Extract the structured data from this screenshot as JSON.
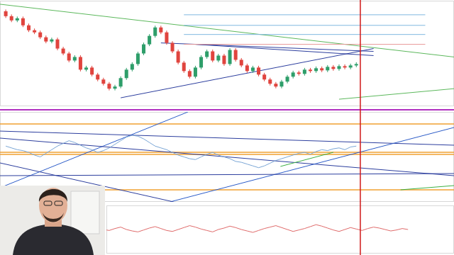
{
  "chart_data": [
    {
      "type": "candlestick",
      "x": [
        0,
        1,
        2,
        3,
        4,
        5,
        6,
        7,
        8,
        9,
        10,
        11,
        12,
        13,
        14,
        15,
        16,
        17,
        18,
        19,
        20,
        21,
        22,
        23,
        24,
        25,
        26,
        27,
        28,
        29,
        30,
        31,
        32,
        33,
        34,
        35,
        36,
        37,
        38,
        39,
        40,
        41,
        42,
        43,
        44,
        45,
        46,
        47,
        48,
        49,
        50,
        51,
        52,
        53,
        54,
        55,
        56,
        57,
        58,
        59,
        60,
        61
      ],
      "open": [
        2840,
        2812,
        2788,
        2800,
        2760,
        2732,
        2720,
        2692,
        2668,
        2680,
        2628,
        2600,
        2560,
        2580,
        2508,
        2520,
        2480,
        2452,
        2428,
        2400,
        2412,
        2460,
        2508,
        2540,
        2600,
        2652,
        2700,
        2748,
        2720,
        2660,
        2612,
        2548,
        2500,
        2468,
        2520,
        2580,
        2612,
        2560,
        2588,
        2540,
        2620,
        2564,
        2532,
        2500,
        2520,
        2480,
        2452,
        2428,
        2412,
        2440,
        2468,
        2492,
        2484,
        2508,
        2500,
        2516,
        2504,
        2524,
        2512,
        2528,
        2520,
        2532
      ],
      "high": [
        2850,
        2822,
        2810,
        2810,
        2770,
        2742,
        2730,
        2702,
        2690,
        2690,
        2638,
        2610,
        2590,
        2590,
        2530,
        2530,
        2490,
        2462,
        2438,
        2422,
        2470,
        2518,
        2550,
        2610,
        2662,
        2710,
        2758,
        2758,
        2730,
        2670,
        2622,
        2558,
        2510,
        2530,
        2590,
        2622,
        2622,
        2598,
        2598,
        2630,
        2630,
        2574,
        2542,
        2530,
        2530,
        2490,
        2462,
        2438,
        2450,
        2478,
        2502,
        2502,
        2518,
        2518,
        2526,
        2526,
        2534,
        2534,
        2538,
        2538,
        2542,
        2550
      ],
      "low": [
        2802,
        2778,
        2778,
        2750,
        2722,
        2710,
        2682,
        2658,
        2658,
        2618,
        2590,
        2550,
        2550,
        2498,
        2498,
        2470,
        2442,
        2418,
        2390,
        2390,
        2402,
        2450,
        2498,
        2530,
        2590,
        2642,
        2690,
        2710,
        2650,
        2602,
        2538,
        2490,
        2458,
        2458,
        2510,
        2570,
        2550,
        2550,
        2530,
        2530,
        2554,
        2522,
        2490,
        2490,
        2470,
        2442,
        2418,
        2402,
        2402,
        2430,
        2458,
        2474,
        2474,
        2490,
        2490,
        2494,
        2494,
        2502,
        2502,
        2510,
        2510,
        2522
      ],
      "close": [
        2812,
        2788,
        2800,
        2760,
        2732,
        2720,
        2692,
        2668,
        2680,
        2628,
        2600,
        2560,
        2580,
        2508,
        2520,
        2480,
        2452,
        2428,
        2400,
        2412,
        2460,
        2508,
        2540,
        2600,
        2652,
        2700,
        2748,
        2720,
        2660,
        2612,
        2548,
        2500,
        2468,
        2520,
        2580,
        2612,
        2560,
        2588,
        2540,
        2620,
        2564,
        2532,
        2500,
        2520,
        2480,
        2452,
        2428,
        2412,
        2440,
        2468,
        2492,
        2484,
        2508,
        2500,
        2516,
        2504,
        2524,
        2512,
        2528,
        2520,
        2532,
        2540
      ],
      "xlim": [
        -1,
        78
      ],
      "ylim": [
        2300,
        2900
      ],
      "trendlines": [
        {
          "x": [
            -1,
            78
          ],
          "y": [
            2880,
            2580
          ],
          "color": "#5cb85c"
        },
        {
          "x": [
            20,
            64
          ],
          "y": [
            2348,
            2628
          ],
          "color": "#2c3e9e"
        },
        {
          "x": [
            33,
            64
          ],
          "y": [
            2652,
            2588
          ],
          "color": "#2c3e9e"
        },
        {
          "x": [
            27,
            64
          ],
          "y": [
            2660,
            2612
          ],
          "color": "#2c3e9e"
        },
        {
          "x": [
            58,
            78
          ],
          "y": [
            2340,
            2400
          ],
          "color": "#5cb85c"
        },
        {
          "x": [
            31,
            73
          ],
          "y": [
            2820,
            2820
          ],
          "color": "#7fb8e0"
        },
        {
          "x": [
            31,
            73
          ],
          "y": [
            2760,
            2760
          ],
          "color": "#7fb8e0"
        },
        {
          "x": [
            31,
            73
          ],
          "y": [
            2708,
            2708
          ],
          "color": "#7fb8e0"
        },
        {
          "x": [
            31,
            73
          ],
          "y": [
            2652,
            2652
          ],
          "color": "#e89a9a"
        }
      ],
      "cursor_x": 61.7,
      "grid": false,
      "tick_labels": false
    },
    {
      "type": "line",
      "x": [
        0,
        1,
        2,
        3,
        4,
        5,
        6,
        7,
        8,
        9,
        10,
        11,
        12,
        13,
        14,
        15,
        16,
        17,
        18,
        19,
        20,
        21,
        22,
        23,
        24,
        25,
        26,
        27,
        28,
        29,
        30,
        31,
        32,
        33,
        34,
        35,
        36,
        37,
        38,
        39,
        40,
        41,
        42,
        43,
        44,
        45,
        46,
        47,
        48,
        49,
        50,
        51,
        52,
        53,
        54,
        55,
        56,
        57,
        58,
        59,
        60,
        61
      ],
      "series": [
        {
          "color": "#7aa6d6",
          "values": [
            62,
            60,
            58,
            57,
            55,
            52,
            50,
            54,
            58,
            62,
            65,
            68,
            66,
            63,
            60,
            58,
            55,
            57,
            60,
            64,
            68,
            72,
            74,
            73,
            70,
            66,
            62,
            60,
            58,
            55,
            52,
            50,
            48,
            47,
            50,
            53,
            55,
            52,
            50,
            48,
            45,
            44,
            42,
            40,
            38,
            40,
            43,
            46,
            48,
            50,
            52,
            54,
            55,
            53,
            56,
            58,
            57,
            59,
            60,
            58,
            61,
            62
          ]
        }
      ],
      "xlim": [
        -1,
        78
      ],
      "ylim": [
        0,
        100
      ],
      "levels": [
        {
          "value": 86.6,
          "color": "#f0a030"
        },
        {
          "value": 55.1,
          "color": "#f0a030"
        },
        {
          "value": 52.8,
          "color": "#f0a030"
        },
        {
          "value": 13.4,
          "color": "#f0a030"
        }
      ],
      "trendlines": [
        {
          "x": [
            -1,
            31.7
          ],
          "y": [
            15.7,
            100
          ],
          "color": "#2c5cc8"
        },
        {
          "x": [
            -1,
            78
          ],
          "y": [
            78.7,
            63
          ],
          "color": "#2c3e9e"
        },
        {
          "x": [
            -1,
            78
          ],
          "y": [
            70.9,
            29.1
          ],
          "color": "#2c3e9e"
        },
        {
          "x": [
            28.6,
            78
          ],
          "y": [
            0,
            82.7
          ],
          "color": "#2c5cc8"
        },
        {
          "x": [
            -1,
            29.2
          ],
          "y": [
            43.3,
            0
          ],
          "color": "#2c3e9e"
        },
        {
          "x": [
            -1,
            78
          ],
          "y": [
            29.1,
            31.5
          ],
          "color": "#2c3e9e"
        },
        {
          "x": [
            47.8,
            57
          ],
          "y": [
            39.4,
            55.1
          ],
          "color": "#3cb043"
        },
        {
          "x": [
            68.7,
            78
          ],
          "y": [
            13.4,
            18.1
          ],
          "color": "#3cb043"
        }
      ],
      "grid": false,
      "tick_labels": false
    },
    {
      "type": "line",
      "x": [
        17,
        18,
        19,
        20,
        21,
        22,
        23,
        24,
        25,
        26,
        27,
        28,
        29,
        30,
        31,
        32,
        33,
        34,
        35,
        36,
        37,
        38,
        39,
        40,
        41,
        42,
        43,
        44,
        45,
        46,
        47,
        48,
        49,
        50,
        51,
        52,
        53,
        54,
        55,
        56,
        57,
        58,
        59,
        60,
        61,
        62,
        63,
        64,
        65,
        66,
        67,
        68,
        69,
        70
      ],
      "series": [
        {
          "color": "#e06a6a",
          "values": [
            50,
            48,
            52,
            55,
            50,
            47,
            45,
            49,
            53,
            56,
            52,
            48,
            46,
            50,
            54,
            58,
            55,
            51,
            48,
            45,
            50,
            53,
            57,
            54,
            50,
            47,
            44,
            48,
            52,
            55,
            58,
            54,
            50,
            46,
            49,
            52,
            56,
            60,
            57,
            53,
            49,
            46,
            50,
            54,
            51,
            48,
            52,
            55,
            53,
            50,
            47,
            49,
            52,
            50
          ]
        }
      ],
      "xlim": [
        -1,
        78
      ],
      "ylim": [
        0,
        100
      ],
      "grid": false,
      "tick_labels": false
    }
  ]
}
